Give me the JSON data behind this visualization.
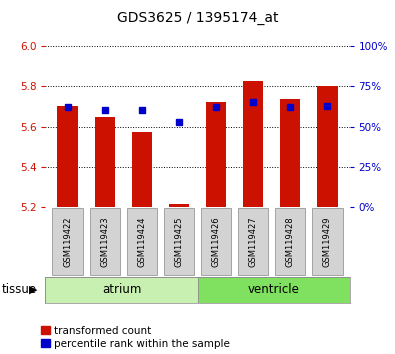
{
  "title": "GDS3625 / 1395174_at",
  "samples": [
    "GSM119422",
    "GSM119423",
    "GSM119424",
    "GSM119425",
    "GSM119426",
    "GSM119427",
    "GSM119428",
    "GSM119429"
  ],
  "red_values": [
    5.7,
    5.648,
    5.572,
    5.213,
    5.72,
    5.825,
    5.735,
    5.8
  ],
  "blue_pct": [
    62,
    60,
    60,
    53,
    62,
    65,
    62,
    63
  ],
  "y_min": 5.2,
  "y_max": 6.0,
  "y_ticks": [
    5.2,
    5.4,
    5.6,
    5.8,
    6.0
  ],
  "right_y_ticks": [
    0,
    25,
    50,
    75,
    100
  ],
  "right_y_labels": [
    "0%",
    "25%",
    "50%",
    "75%",
    "100%"
  ],
  "groups": [
    {
      "label": "atrium",
      "start": 0,
      "end": 4,
      "color": "#c8f0b0"
    },
    {
      "label": "ventricle",
      "start": 4,
      "end": 8,
      "color": "#80e060"
    }
  ],
  "tissue_label": "tissue",
  "bar_color": "#cc1100",
  "dot_color": "#0000cc",
  "bar_width": 0.55,
  "background_color": "#ffffff",
  "tick_color_left": "#cc1100",
  "tick_color_right": "#0000cc",
  "legend_red": "transformed count",
  "legend_blue": "percentile rank within the sample",
  "sample_box_color": "#d3d3d3",
  "title_fontsize": 10,
  "tick_fontsize": 7.5,
  "sample_fontsize": 6.0,
  "tissue_fontsize": 8.5,
  "legend_fontsize": 7.5
}
